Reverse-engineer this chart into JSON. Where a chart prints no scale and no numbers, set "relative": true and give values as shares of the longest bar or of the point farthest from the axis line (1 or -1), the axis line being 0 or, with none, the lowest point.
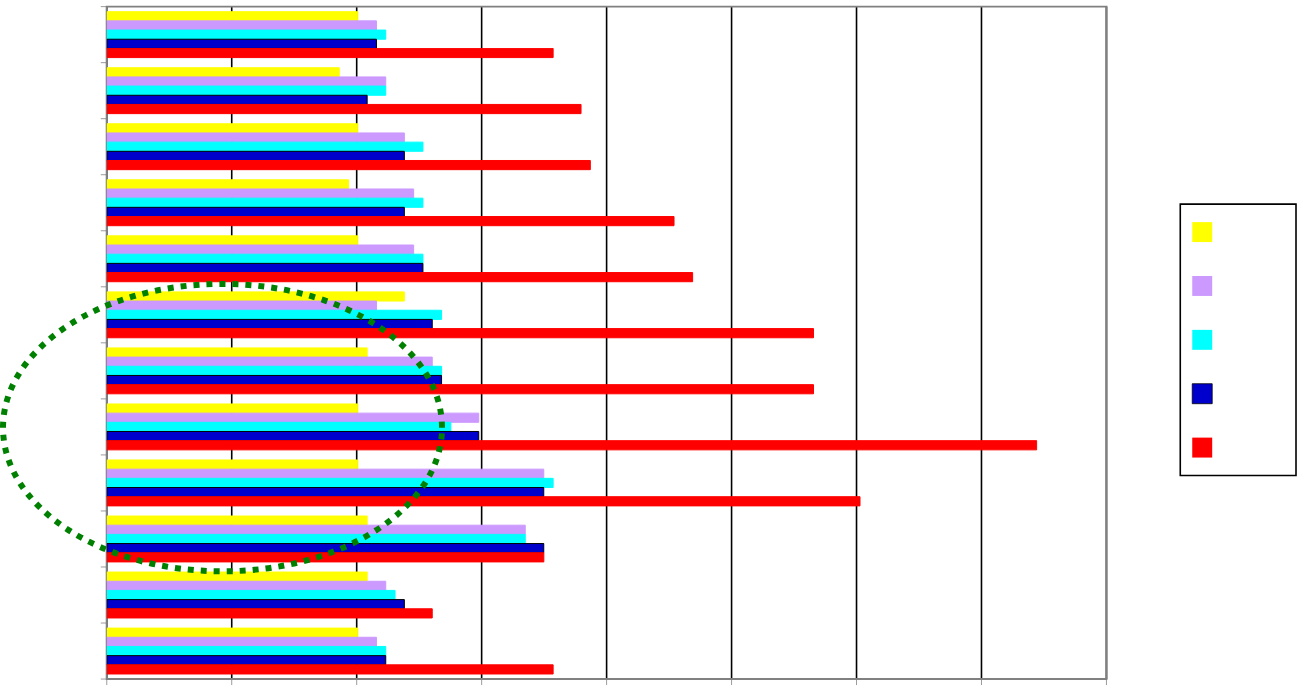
{
  "chart_data": {
    "type": "bar",
    "orientation": "horizontal",
    "relative": true,
    "grid": "x",
    "categories": [
      null,
      null,
      null,
      null,
      null,
      null,
      null,
      null,
      null,
      null,
      null,
      null
    ],
    "series": [
      {
        "color": "#ffff00",
        "values": [
          0.27,
          0.25,
          0.27,
          0.26,
          0.27,
          0.32,
          0.28,
          0.27,
          0.27,
          0.28,
          0.28,
          0.27
        ]
      },
      {
        "color": "#cc99ff",
        "values": [
          0.29,
          0.3,
          0.32,
          0.33,
          0.33,
          0.29,
          0.35,
          0.4,
          0.47,
          0.45,
          0.3,
          0.29
        ]
      },
      {
        "color": "#00ffff",
        "values": [
          0.3,
          0.3,
          0.34,
          0.34,
          0.34,
          0.36,
          0.36,
          0.37,
          0.48,
          0.45,
          0.31,
          0.3
        ]
      },
      {
        "color": "#0000cc",
        "values": [
          0.29,
          0.28,
          0.32,
          0.32,
          0.34,
          0.35,
          0.36,
          0.4,
          0.47,
          0.47,
          0.32,
          0.3
        ]
      },
      {
        "color": "#ff0000",
        "values": [
          0.48,
          0.51,
          0.52,
          0.61,
          0.63,
          0.76,
          0.76,
          1,
          0.81,
          0.47,
          0.35,
          0.48
        ]
      }
    ]
  }
}
